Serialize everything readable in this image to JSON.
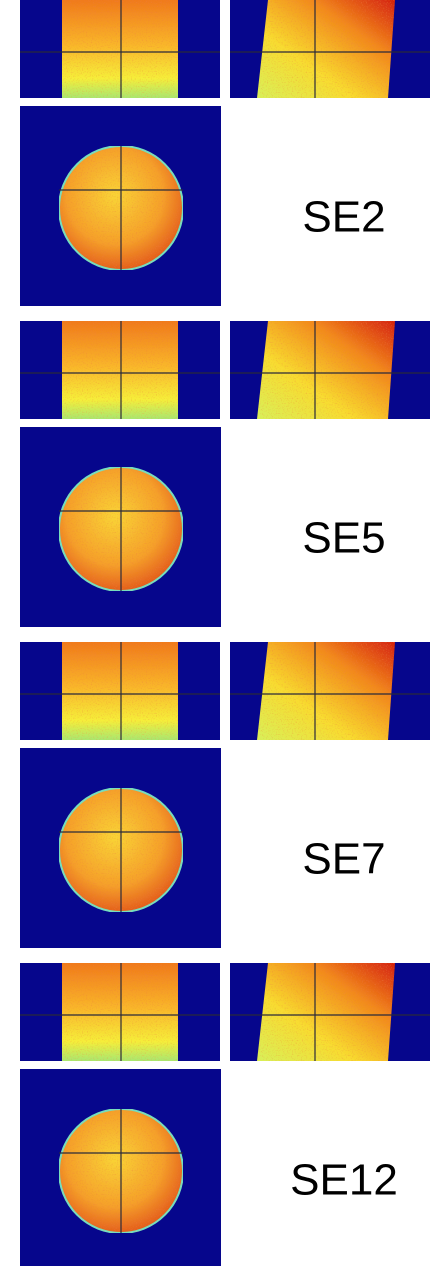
{
  "panels": [
    {
      "label": "SE2"
    },
    {
      "label": "SE5"
    },
    {
      "label": "SE7"
    },
    {
      "label": "SE12"
    }
  ]
}
